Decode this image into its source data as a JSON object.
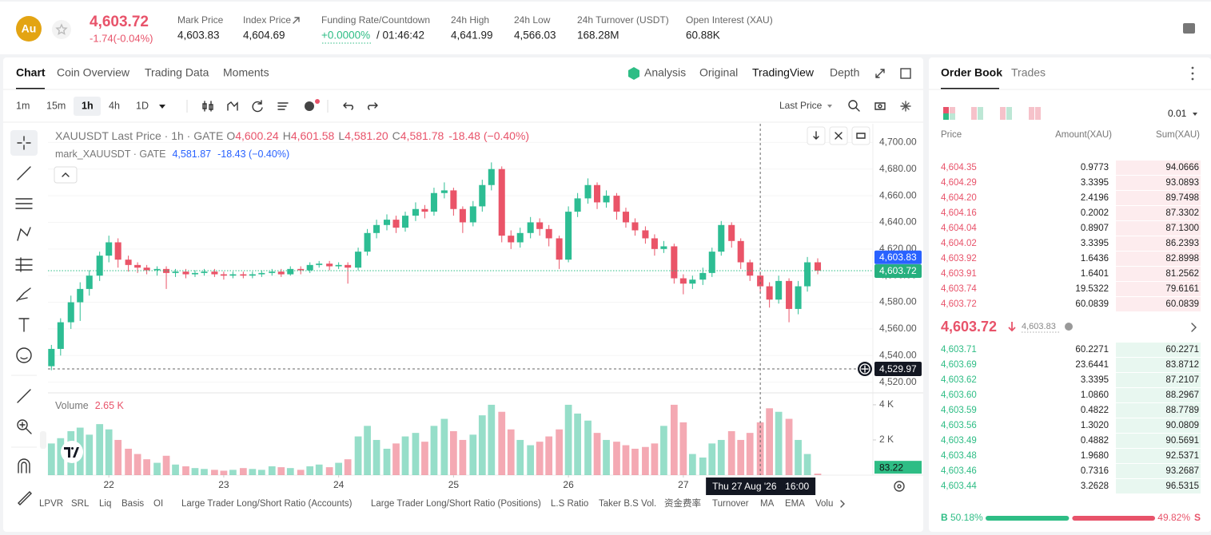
{
  "header": {
    "symbol_icon": "Au",
    "price": "4,603.72",
    "change": "-1.74(-0.04%)",
    "stats": [
      {
        "label": "Mark Price",
        "value": "4,603.83"
      },
      {
        "label": "Index Price",
        "value": "4,604.69"
      },
      {
        "label": "Funding Rate/Countdown",
        "value": "+0.0000%",
        "extra": "/ 01:46:42"
      },
      {
        "label": "24h High",
        "value": "4,641.99"
      },
      {
        "label": "24h Low",
        "value": "4,566.03"
      },
      {
        "label": "24h Turnover (USDT)",
        "value": "168.28M"
      },
      {
        "label": "Open Interest (XAU)",
        "value": "60.88K"
      }
    ]
  },
  "chart_tabs": [
    "Chart",
    "Coin Overview",
    "Trading Data",
    "Moments"
  ],
  "view_tabs": [
    "Analysis",
    "Original",
    "TradingView",
    "Depth"
  ],
  "intervals": [
    "1m",
    "15m",
    "1h",
    "4h",
    "1D"
  ],
  "price_source": "Last Price",
  "indicators": [
    "LPVR",
    "SRL",
    "Liq",
    "Basis",
    "OI",
    "Large Trader Long/Short Ratio (Accounts)",
    "Large Trader Long/Short Ratio (Positions)",
    "L.S Ratio",
    "Taker B.S Vol.",
    "资金费率",
    "Turnover",
    "MA",
    "EMA",
    "Volu"
  ],
  "chart_data": {
    "type": "candlestick",
    "legend": {
      "line1": "XAUUSDT Last Price · 1h · GATE",
      "ohlc": [
        {
          "key": "O",
          "value": "4,600.24"
        },
        {
          "key": "H",
          "value": "4,601.58"
        },
        {
          "key": "L",
          "value": "4,581.20"
        },
        {
          "key": "C",
          "value": "4,581.78"
        }
      ],
      "change": "-18.48 (−0.40%)",
      "line2": "mark_XAUUSDT · GATE",
      "line2_value": "4,581.87",
      "line2_change": "-18.43 (−0.40%)"
    },
    "x": [
      21.5,
      21.58,
      21.67,
      21.75,
      21.83,
      21.92,
      22,
      22.08,
      22.17,
      22.25,
      22.33,
      22.42,
      22.5,
      22.58,
      22.67,
      22.75,
      22.83,
      22.92,
      23,
      23.08,
      23.17,
      23.25,
      23.33,
      23.42,
      23.5,
      23.58,
      23.67,
      23.75,
      23.83,
      23.92,
      24,
      24.08,
      24.17,
      24.25,
      24.33,
      24.42,
      24.5,
      24.58,
      24.67,
      24.75,
      24.83,
      24.92,
      25,
      25.08,
      25.17,
      25.25,
      25.33,
      25.42,
      25.5,
      25.58,
      25.67,
      25.75,
      25.83,
      25.92,
      26,
      26.08,
      26.17,
      26.25,
      26.33,
      26.42,
      26.5,
      26.58,
      26.67,
      26.75,
      26.83,
      26.92,
      27,
      27.08,
      27.17,
      27.25,
      27.33,
      27.42,
      27.5,
      27.58,
      27.67,
      27.75,
      27.83,
      27.92,
      28,
      28.08,
      28.17
    ],
    "open": [
      4532,
      4545,
      4565,
      4580,
      4590,
      4600,
      4615,
      4625,
      4612,
      4608,
      4606,
      4604,
      4605,
      4602,
      4603,
      4601,
      4602,
      4603,
      4601,
      4600,
      4601,
      4600,
      4601,
      4602,
      4603,
      4601,
      4605,
      4604,
      4608,
      4609,
      4607,
      4608,
      4606,
      4618,
      4632,
      4638,
      4642,
      4636,
      4645,
      4650,
      4648,
      4662,
      4664,
      4650,
      4640,
      4652,
      4668,
      4680,
      4630,
      4625,
      4632,
      4640,
      4635,
      4628,
      4612,
      4648,
      4658,
      4668,
      4655,
      4660,
      4648,
      4640,
      4634,
      4628,
      4620,
      4622,
      4598,
      4594,
      4597,
      4602,
      4618,
      4638,
      4626,
      4610,
      4600,
      4592,
      4582,
      4596,
      4575,
      4592,
      4610
    ],
    "high": [
      4548,
      4568,
      4585,
      4595,
      4604,
      4618,
      4630,
      4628,
      4615,
      4610,
      4608,
      4607,
      4607,
      4605,
      4605,
      4604,
      4605,
      4605,
      4603,
      4603,
      4603,
      4603,
      4604,
      4605,
      4605,
      4607,
      4607,
      4610,
      4611,
      4611,
      4610,
      4610,
      4621,
      4635,
      4642,
      4646,
      4645,
      4648,
      4655,
      4653,
      4666,
      4670,
      4666,
      4652,
      4656,
      4672,
      4685,
      4682,
      4634,
      4636,
      4644,
      4643,
      4638,
      4630,
      4652,
      4662,
      4673,
      4670,
      4664,
      4662,
      4651,
      4643,
      4637,
      4631,
      4626,
      4624,
      4601,
      4600,
      4606,
      4621,
      4641,
      4640,
      4628,
      4612,
      4603,
      4595,
      4600,
      4598,
      4596,
      4614,
      4613
    ],
    "low": [
      4529,
      4540,
      4560,
      4566,
      4585,
      4596,
      4610,
      4606,
      4603,
      4602,
      4601,
      4600,
      4590,
      4599,
      4598,
      4599,
      4600,
      4599,
      4597,
      4598,
      4598,
      4598,
      4599,
      4600,
      4599,
      4600,
      4601,
      4602,
      4606,
      4604,
      4605,
      4594,
      4604,
      4615,
      4628,
      4634,
      4632,
      4633,
      4641,
      4643,
      4645,
      4658,
      4645,
      4632,
      4637,
      4648,
      4664,
      4625,
      4620,
      4621,
      4628,
      4630,
      4622,
      4605,
      4610,
      4644,
      4654,
      4650,
      4651,
      4642,
      4636,
      4630,
      4624,
      4615,
      4617,
      4594,
      4586,
      4590,
      4593,
      4599,
      4615,
      4621,
      4605,
      4596,
      4587,
      4576,
      4579,
      4565,
      4571,
      4588,
      4601
    ],
    "close": [
      4545,
      4565,
      4580,
      4590,
      4600,
      4615,
      4625,
      4612,
      4608,
      4606,
      4604,
      4605,
      4602,
      4603,
      4601,
      4602,
      4603,
      4601,
      4600,
      4601,
      4600,
      4601,
      4602,
      4603,
      4601,
      4605,
      4604,
      4608,
      4609,
      4607,
      4608,
      4606,
      4618,
      4632,
      4638,
      4642,
      4636,
      4645,
      4650,
      4648,
      4662,
      4664,
      4650,
      4640,
      4652,
      4668,
      4680,
      4630,
      4625,
      4632,
      4640,
      4635,
      4628,
      4612,
      4648,
      4658,
      4668,
      4655,
      4660,
      4648,
      4640,
      4634,
      4628,
      4620,
      4622,
      4598,
      4594,
      4597,
      4602,
      4618,
      4638,
      4626,
      4610,
      4600,
      4592,
      4582,
      4596,
      4575,
      4592,
      4610,
      4603.72
    ],
    "volume": [
      1800,
      2100,
      2500,
      2700,
      2300,
      2900,
      2600,
      2000,
      1500,
      1200,
      900,
      700,
      1100,
      600,
      500,
      400,
      350,
      300,
      250,
      300,
      400,
      350,
      300,
      500,
      450,
      400,
      300,
      500,
      600,
      450,
      700,
      900,
      2200,
      2800,
      2000,
      1500,
      1800,
      2200,
      2400,
      1900,
      2800,
      3200,
      2500,
      2000,
      2300,
      3400,
      4000,
      3600,
      2600,
      2000,
      1700,
      1900,
      2200,
      2600,
      4000,
      3500,
      3100,
      2400,
      2000,
      1900,
      1700,
      1500,
      1600,
      1800,
      2800,
      4000,
      3000,
      1200,
      1000,
      1800,
      2000,
      2500,
      2000,
      2400,
      3000,
      3800,
      3600,
      3200,
      2000,
      1200,
      83.22
    ],
    "up_color": "#2dbd93",
    "down_color": "#ea5468",
    "xlim": [
      21.47,
      28.65
    ],
    "xticks": [
      22,
      23,
      24,
      25,
      26,
      27
    ],
    "ylim": [
      4512,
      4714
    ],
    "yticks": [
      {
        "value": 4520,
        "label": "4,520.00"
      },
      {
        "value": 4540,
        "label": "4,540.00"
      },
      {
        "value": 4560,
        "label": "4,560.00"
      },
      {
        "value": 4580,
        "label": "4,580.00"
      },
      {
        "value": 4600,
        "label": "4,600.00"
      },
      {
        "value": 4620,
        "label": "4,620.00"
      },
      {
        "value": 4640,
        "label": "4,640.00"
      },
      {
        "value": 4660,
        "label": "4,660.00"
      },
      {
        "value": 4680,
        "label": "4,680.00"
      },
      {
        "value": 4700,
        "label": "4,700.00"
      }
    ],
    "grid": true,
    "last_price": {
      "value": 4603.72,
      "label": "4,603.72"
    },
    "mark_price": {
      "value": 4603.83,
      "label": "4,603.83"
    },
    "crosshair": {
      "x": 27.67,
      "time_label": "Thu 27 Aug '26",
      "time": "16:00",
      "price": {
        "value": 4529.97,
        "label": "4,529.97"
      }
    },
    "volume_legend": {
      "label": "Volume",
      "value": "2.65 K"
    },
    "volume_ylim": [
      0,
      4450
    ],
    "volume_yticks": [
      {
        "value": 2000,
        "label": "2 K"
      },
      {
        "value": 4000,
        "label": "4 K"
      }
    ]
  },
  "order_book": {
    "tabs": [
      "Order Book",
      "Trades"
    ],
    "precision": "0.01",
    "columns": [
      "Price",
      "Amount(XAU)",
      "Sum(XAU)"
    ],
    "asks": [
      [
        "4,604.35",
        "0.9773",
        "94.0666"
      ],
      [
        "4,604.29",
        "3.3395",
        "93.0893"
      ],
      [
        "4,604.20",
        "2.4196",
        "89.7498"
      ],
      [
        "4,604.16",
        "0.2002",
        "87.3302"
      ],
      [
        "4,604.04",
        "0.8907",
        "87.1300"
      ],
      [
        "4,604.02",
        "3.3395",
        "86.2393"
      ],
      [
        "4,603.92",
        "1.6436",
        "82.8998"
      ],
      [
        "4,603.91",
        "1.6401",
        "81.2562"
      ],
      [
        "4,603.74",
        "19.5322",
        "79.6161"
      ],
      [
        "4,603.72",
        "60.0839",
        "60.0839"
      ]
    ],
    "mid": {
      "price": "4,603.72",
      "mark": "4,603.83"
    },
    "bids": [
      [
        "4,603.71",
        "60.2271",
        "60.2271"
      ],
      [
        "4,603.69",
        "23.6441",
        "83.8712"
      ],
      [
        "4,603.62",
        "3.3395",
        "87.2107"
      ],
      [
        "4,603.60",
        "1.0860",
        "88.2967"
      ],
      [
        "4,603.59",
        "0.4822",
        "88.7789"
      ],
      [
        "4,603.56",
        "1.3020",
        "90.0809"
      ],
      [
        "4,603.49",
        "0.4882",
        "90.5691"
      ],
      [
        "4,603.48",
        "1.9680",
        "92.5371"
      ],
      [
        "4,603.46",
        "0.7316",
        "93.2687"
      ],
      [
        "4,603.44",
        "3.2628",
        "96.5315"
      ]
    ],
    "ratio": {
      "buy": {
        "side": "B",
        "value": 50.18,
        "label": "50.18%"
      },
      "sell": {
        "side": "S",
        "value": 49.82,
        "label": "49.82%"
      }
    }
  }
}
